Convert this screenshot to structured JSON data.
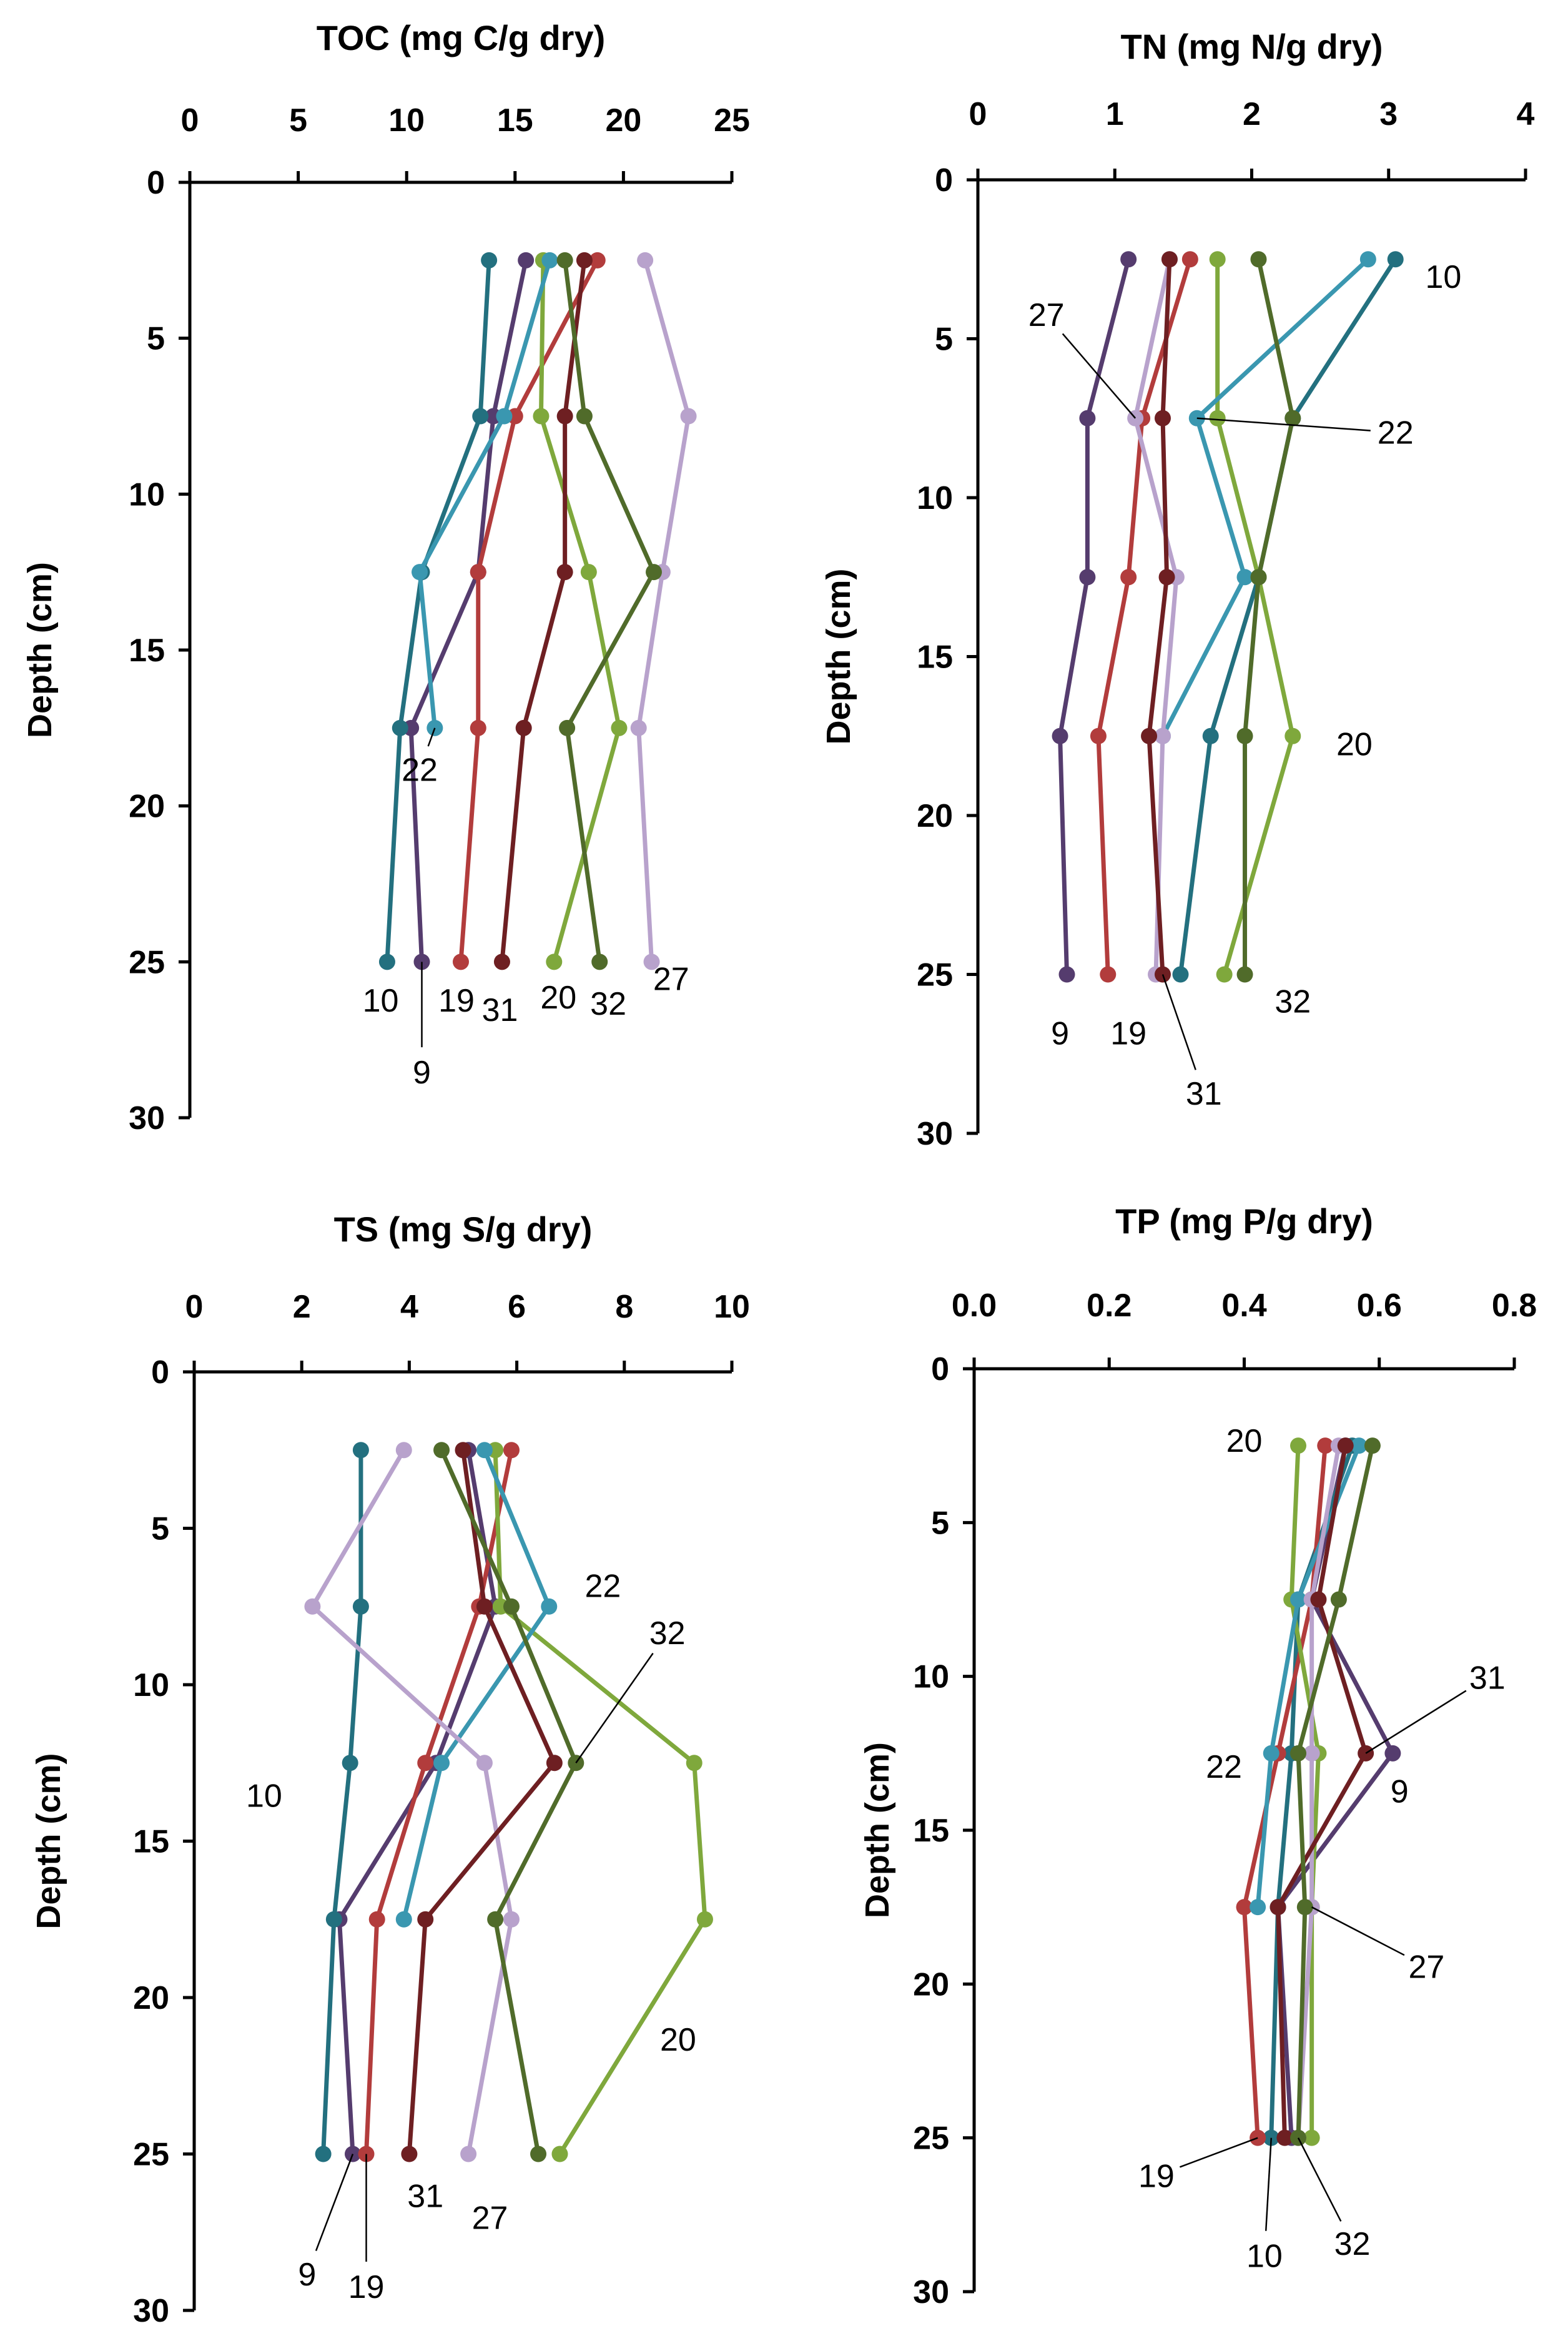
{
  "chart_data": [
    {
      "type": "line",
      "title": "TOC (mg C/g dry)",
      "xlabel": "TOC (mg C/g dry)",
      "ylabel": "Depth (cm)",
      "xlim": [
        0,
        25
      ],
      "xticks": [
        0,
        5,
        10,
        15,
        20,
        25
      ],
      "ylim": [
        0,
        30
      ],
      "yticks": [
        0,
        5,
        10,
        15,
        20,
        25,
        30
      ],
      "ylabel_shown": true,
      "depths": [
        2.5,
        7.5,
        12.5,
        17.5,
        25
      ],
      "series": [
        {
          "name": "9",
          "color": "#553c6e",
          "values": [
            15.5,
            14.0,
            13.3,
            10.2,
            10.7
          ]
        },
        {
          "name": "10",
          "color": "#23707f",
          "values": [
            13.8,
            13.4,
            10.7,
            9.7,
            9.1
          ]
        },
        {
          "name": "19",
          "color": "#b23c3c",
          "values": [
            18.8,
            15.0,
            13.3,
            13.3,
            12.5
          ]
        },
        {
          "name": "20",
          "color": "#7fa83c",
          "values": [
            16.3,
            16.2,
            18.4,
            19.8,
            16.8
          ]
        },
        {
          "name": "22",
          "color": "#3a97b0",
          "values": [
            16.6,
            14.5,
            10.6,
            11.3,
            null
          ]
        },
        {
          "name": "27",
          "color": "#b8a2cc",
          "values": [
            21.0,
            23.0,
            21.8,
            20.7,
            21.3
          ]
        },
        {
          "name": "31",
          "color": "#6e1f22",
          "values": [
            18.2,
            17.3,
            17.3,
            15.4,
            14.4
          ]
        },
        {
          "name": "32",
          "color": "#506b2a",
          "values": [
            17.3,
            18.2,
            21.4,
            17.4,
            18.9
          ]
        }
      ],
      "annotations": [
        {
          "text": "22",
          "x": 10.6,
          "y": 19.2
        },
        {
          "text": "10",
          "x": 8.8,
          "y": 26.6
        },
        {
          "text": "19",
          "x": 12.3,
          "y": 26.6
        },
        {
          "text": "31",
          "x": 14.3,
          "y": 26.9
        },
        {
          "text": "20",
          "x": 17.0,
          "y": 26.5
        },
        {
          "text": "32",
          "x": 19.3,
          "y": 26.7
        },
        {
          "text": "27",
          "x": 22.2,
          "y": 25.9
        },
        {
          "text": "9",
          "x": 10.7,
          "y": 28.9
        }
      ]
    },
    {
      "type": "line",
      "title": "TN (mg N/g dry)",
      "xlabel": "TN (mg N/g dry)",
      "ylabel": "Depth (cm)",
      "xlim": [
        0,
        4
      ],
      "xticks": [
        0,
        1,
        2,
        3,
        4
      ],
      "ylim": [
        0,
        30
      ],
      "yticks": [
        0,
        5,
        10,
        15,
        20,
        25,
        30
      ],
      "ylabel_shown": true,
      "depths": [
        2.5,
        7.5,
        12.5,
        17.5,
        25
      ],
      "series": [
        {
          "name": "9",
          "color": "#553c6e",
          "values": [
            1.1,
            0.8,
            0.8,
            0.6,
            0.65
          ]
        },
        {
          "name": "10",
          "color": "#23707f",
          "values": [
            3.05,
            2.3,
            2.05,
            1.7,
            1.48
          ]
        },
        {
          "name": "19",
          "color": "#b23c3c",
          "values": [
            1.55,
            1.2,
            1.1,
            0.88,
            0.95
          ]
        },
        {
          "name": "20",
          "color": "#7fa83c",
          "values": [
            1.75,
            1.75,
            2.05,
            2.3,
            1.8
          ]
        },
        {
          "name": "22",
          "color": "#3a97b0",
          "values": [
            2.85,
            1.6,
            1.95,
            1.35,
            null
          ]
        },
        {
          "name": "27",
          "color": "#b8a2cc",
          "values": [
            1.4,
            1.15,
            1.45,
            1.35,
            1.3
          ]
        },
        {
          "name": "31",
          "color": "#6e1f22",
          "values": [
            1.4,
            1.35,
            1.38,
            1.25,
            1.35
          ]
        },
        {
          "name": "32",
          "color": "#506b2a",
          "values": [
            2.05,
            2.3,
            2.05,
            1.95,
            1.95
          ]
        }
      ],
      "annotations": [
        {
          "text": "10",
          "x": 3.4,
          "y": 3.4
        },
        {
          "text": "27",
          "x": 0.5,
          "y": 4.6
        },
        {
          "text": "22",
          "x": 3.05,
          "y": 8.3
        },
        {
          "text": "20",
          "x": 2.75,
          "y": 18.1
        },
        {
          "text": "32",
          "x": 2.3,
          "y": 26.2
        },
        {
          "text": "9",
          "x": 0.6,
          "y": 27.2
        },
        {
          "text": "19",
          "x": 1.1,
          "y": 27.2
        },
        {
          "text": "31",
          "x": 1.65,
          "y": 29.1
        }
      ]
    },
    {
      "type": "line",
      "title": "TS (mg S/g dry)",
      "xlabel": "TS (mg S/g dry)",
      "ylabel": "Depth (cm)",
      "xlim": [
        0,
        10
      ],
      "xticks": [
        0,
        2,
        4,
        6,
        8,
        10
      ],
      "ylim": [
        0,
        30
      ],
      "yticks": [
        0,
        5,
        10,
        15,
        20,
        25,
        30
      ],
      "ylabel_shown": true,
      "depths": [
        2.5,
        7.5,
        12.5,
        17.5,
        25
      ],
      "series": [
        {
          "name": "9",
          "color": "#553c6e",
          "values": [
            5.1,
            5.6,
            4.5,
            2.7,
            2.95
          ]
        },
        {
          "name": "10",
          "color": "#23707f",
          "values": [
            3.1,
            3.1,
            2.9,
            2.6,
            2.4
          ]
        },
        {
          "name": "19",
          "color": "#b23c3c",
          "values": [
            5.9,
            5.3,
            4.3,
            3.4,
            3.2
          ]
        },
        {
          "name": "20",
          "color": "#7fa83c",
          "values": [
            5.6,
            5.7,
            9.3,
            9.5,
            6.8
          ]
        },
        {
          "name": "22",
          "color": "#3a97b0",
          "values": [
            5.4,
            6.6,
            4.6,
            3.9,
            null
          ]
        },
        {
          "name": "27",
          "color": "#b8a2cc",
          "values": [
            3.9,
            2.2,
            5.4,
            5.9,
            5.1
          ]
        },
        {
          "name": "31",
          "color": "#6e1f22",
          "values": [
            5.0,
            5.4,
            6.7,
            4.3,
            4.0
          ]
        },
        {
          "name": "32",
          "color": "#506b2a",
          "values": [
            4.6,
            5.9,
            7.1,
            5.6,
            6.4
          ]
        }
      ],
      "annotations": [
        {
          "text": "22",
          "x": 7.6,
          "y": 7.2
        },
        {
          "text": "32",
          "x": 8.8,
          "y": 8.7
        },
        {
          "text": "10",
          "x": 1.3,
          "y": 13.9
        },
        {
          "text": "20",
          "x": 9.0,
          "y": 21.7
        },
        {
          "text": "31",
          "x": 4.3,
          "y": 26.7
        },
        {
          "text": "27",
          "x": 5.5,
          "y": 27.4
        },
        {
          "text": "9",
          "x": 2.1,
          "y": 29.2
        },
        {
          "text": "19",
          "x": 3.2,
          "y": 29.6
        }
      ]
    },
    {
      "type": "line",
      "title": "TP (mg P/g dry)",
      "xlabel": "TP (mg P/g dry)",
      "ylabel": "Depth (cm)",
      "xlim": [
        0,
        0.8
      ],
      "xticks": [
        "0.0",
        "0.2",
        "0.4",
        "0.6",
        "0.8"
      ],
      "ylim": [
        0,
        30
      ],
      "yticks": [
        0,
        5,
        10,
        15,
        20,
        25,
        30
      ],
      "ylabel_shown": true,
      "depths": [
        2.5,
        7.5,
        12.5,
        17.5,
        25
      ],
      "series": [
        {
          "name": "9",
          "color": "#553c6e",
          "values": [
            0.55,
            0.5,
            0.62,
            0.45,
            0.47
          ]
        },
        {
          "name": "10",
          "color": "#23707f",
          "values": [
            0.56,
            0.48,
            0.47,
            0.45,
            0.44
          ]
        },
        {
          "name": "19",
          "color": "#b23c3c",
          "values": [
            0.52,
            0.5,
            0.45,
            0.4,
            0.42
          ]
        },
        {
          "name": "20",
          "color": "#7fa83c",
          "values": [
            0.48,
            0.47,
            0.51,
            0.5,
            0.5
          ]
        },
        {
          "name": "22",
          "color": "#3a97b0",
          "values": [
            0.57,
            0.48,
            0.44,
            0.42,
            null
          ]
        },
        {
          "name": "27",
          "color": "#b8a2cc",
          "values": [
            0.54,
            0.5,
            0.5,
            0.5,
            0.48
          ]
        },
        {
          "name": "31",
          "color": "#6e1f22",
          "values": [
            0.55,
            0.51,
            0.58,
            0.45,
            0.46
          ]
        },
        {
          "name": "32",
          "color": "#506b2a",
          "values": [
            0.59,
            0.54,
            0.48,
            0.49,
            0.48
          ]
        }
      ],
      "annotations": [
        {
          "text": "20",
          "x": 0.4,
          "y": 2.7
        },
        {
          "text": "31",
          "x": 0.76,
          "y": 10.4
        },
        {
          "text": "22",
          "x": 0.37,
          "y": 13.3
        },
        {
          "text": "9",
          "x": 0.63,
          "y": 14.1
        },
        {
          "text": "27",
          "x": 0.67,
          "y": 19.8
        },
        {
          "text": "19",
          "x": 0.27,
          "y": 26.6
        },
        {
          "text": "10",
          "x": 0.43,
          "y": 29.2
        },
        {
          "text": "32",
          "x": 0.56,
          "y": 28.8
        }
      ]
    }
  ]
}
